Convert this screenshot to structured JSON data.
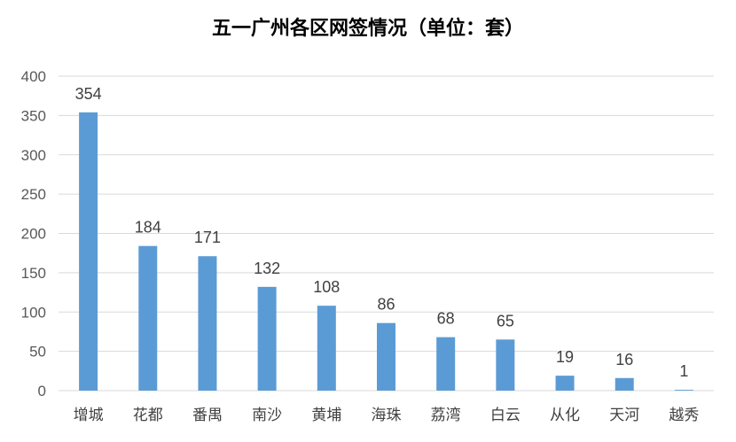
{
  "chart_data": {
    "type": "bar",
    "title": "五一广州各区网签情况（单位：套）",
    "categories": [
      "增城",
      "花都",
      "番禺",
      "南沙",
      "黄埔",
      "海珠",
      "荔湾",
      "白云",
      "从化",
      "天河",
      "越秀"
    ],
    "values": [
      354,
      184,
      171,
      132,
      108,
      86,
      68,
      65,
      19,
      16,
      1
    ],
    "ylim": [
      0,
      400
    ],
    "yticks": [
      0,
      50,
      100,
      150,
      200,
      250,
      300,
      350,
      400
    ],
    "xlabel": "",
    "ylabel": "",
    "grid": true,
    "legend": "none",
    "bar_color": "#5B9BD5",
    "grid_color": "#D9D9D9"
  }
}
